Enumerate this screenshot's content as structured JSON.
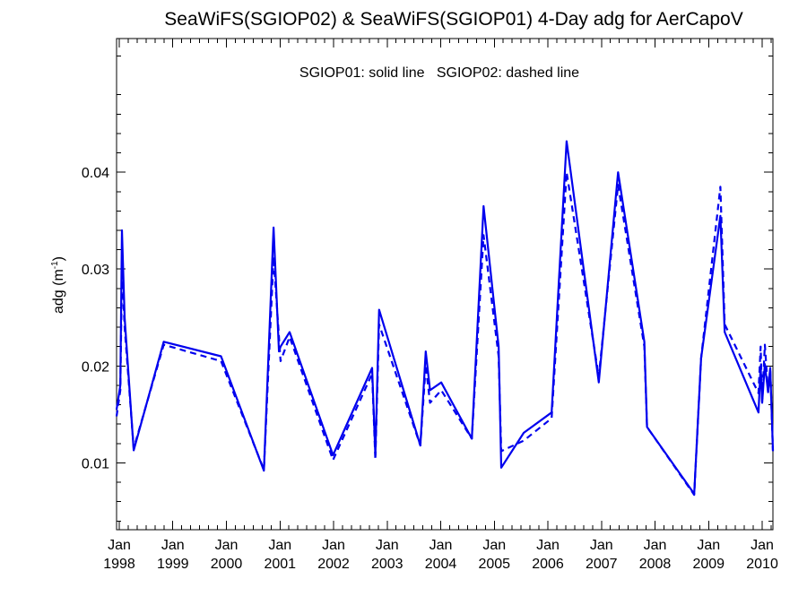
{
  "chart_data": {
    "type": "line",
    "title": "SeaWiFS(SGIOP02) & SeaWiFS(SGIOP01) 4-Day adg for AerCapoV",
    "annotation": "SGIOP01: solid line   SGIOP02: dashed line",
    "ylabel": "adg (m",
    "ylabel_exponent": "-1",
    "ylabel_close": ")",
    "xlabel": "",
    "xlim": [
      1997.95,
      2010.2
    ],
    "ylim": [
      0.0031,
      0.0538
    ],
    "grid": false,
    "line_color": "#0000ee",
    "x_tick_labels": [
      {
        "x": 1998.0,
        "month": "Jan",
        "year": "1998"
      },
      {
        "x": 1999.0,
        "month": "Jan",
        "year": "1999"
      },
      {
        "x": 2000.0,
        "month": "Jan",
        "year": "2000"
      },
      {
        "x": 2001.0,
        "month": "Jan",
        "year": "2001"
      },
      {
        "x": 2002.0,
        "month": "Jan",
        "year": "2002"
      },
      {
        "x": 2003.0,
        "month": "Jan",
        "year": "2003"
      },
      {
        "x": 2004.0,
        "month": "Jan",
        "year": "2004"
      },
      {
        "x": 2005.0,
        "month": "Jan",
        "year": "2005"
      },
      {
        "x": 2006.0,
        "month": "Jan",
        "year": "2006"
      },
      {
        "x": 2007.0,
        "month": "Jan",
        "year": "2007"
      },
      {
        "x": 2008.0,
        "month": "Jan",
        "year": "2008"
      },
      {
        "x": 2009.0,
        "month": "Jan",
        "year": "2009"
      },
      {
        "x": 2010.0,
        "month": "Jan",
        "year": "2010"
      }
    ],
    "y_ticks": [
      {
        "value": 0.01,
        "label": "0.01"
      },
      {
        "value": 0.02,
        "label": "0.02"
      },
      {
        "value": 0.03,
        "label": "0.03"
      },
      {
        "value": 0.04,
        "label": "0.04"
      }
    ],
    "series": [
      {
        "style": "solid",
        "x": [
          1997.95,
          1998.02,
          1998.05,
          1998.1,
          1998.27,
          1998.83,
          1999.9,
          2000.7,
          2000.88,
          2000.98,
          2001.01,
          2001.18,
          2001.99,
          2002.72,
          2002.78,
          2002.85,
          2003.62,
          2003.72,
          2003.8,
          2004.01,
          2004.58,
          2004.8,
          2005.08,
          2005.13,
          2005.55,
          2006.07,
          2006.35,
          2006.95,
          2007.31,
          2007.8,
          2007.85,
          2008.73,
          2008.86,
          2009.22,
          2009.3,
          2009.93,
          2009.97,
          2010.0,
          2010.05,
          2010.11,
          2010.15,
          2010.2
        ],
        "y": [
          0.0155,
          0.018,
          0.034,
          0.025,
          0.0113,
          0.0225,
          0.021,
          0.0092,
          0.0343,
          0.0215,
          0.022,
          0.0235,
          0.0108,
          0.0198,
          0.0108,
          0.0258,
          0.0118,
          0.0215,
          0.0175,
          0.0183,
          0.0125,
          0.0365,
          0.022,
          0.0095,
          0.0131,
          0.0152,
          0.0432,
          0.0183,
          0.04,
          0.0225,
          0.0137,
          0.0068,
          0.0208,
          0.0355,
          0.0235,
          0.0152,
          0.02,
          0.0162,
          0.0202,
          0.0173,
          0.0198,
          0.0113
        ]
      },
      {
        "style": "dashed",
        "x": [
          1997.95,
          1998.02,
          1998.05,
          1998.1,
          1998.27,
          1998.83,
          1999.9,
          2000.7,
          2000.88,
          2001.01,
          2001.18,
          2001.99,
          2002.72,
          2002.78,
          2002.85,
          2003.62,
          2003.72,
          2003.8,
          2004.01,
          2004.58,
          2004.8,
          2005.08,
          2005.13,
          2005.55,
          2006.07,
          2006.35,
          2006.95,
          2007.31,
          2007.8,
          2007.85,
          2008.73,
          2008.86,
          2009.22,
          2009.3,
          2009.93,
          2009.97,
          2010.0,
          2010.05,
          2010.11,
          2010.15,
          2010.2
        ],
        "y": [
          0.0148,
          0.0175,
          0.03,
          0.024,
          0.0115,
          0.0222,
          0.0205,
          0.0093,
          0.0313,
          0.0205,
          0.023,
          0.0103,
          0.0192,
          0.0103,
          0.0243,
          0.0118,
          0.0201,
          0.0162,
          0.0175,
          0.0125,
          0.0335,
          0.021,
          0.0112,
          0.0123,
          0.0146,
          0.04,
          0.0189,
          0.0387,
          0.022,
          0.0137,
          0.0067,
          0.0208,
          0.0385,
          0.0243,
          0.0172,
          0.022,
          0.0162,
          0.0222,
          0.0173,
          0.0198,
          0.0112
        ]
      }
    ]
  }
}
